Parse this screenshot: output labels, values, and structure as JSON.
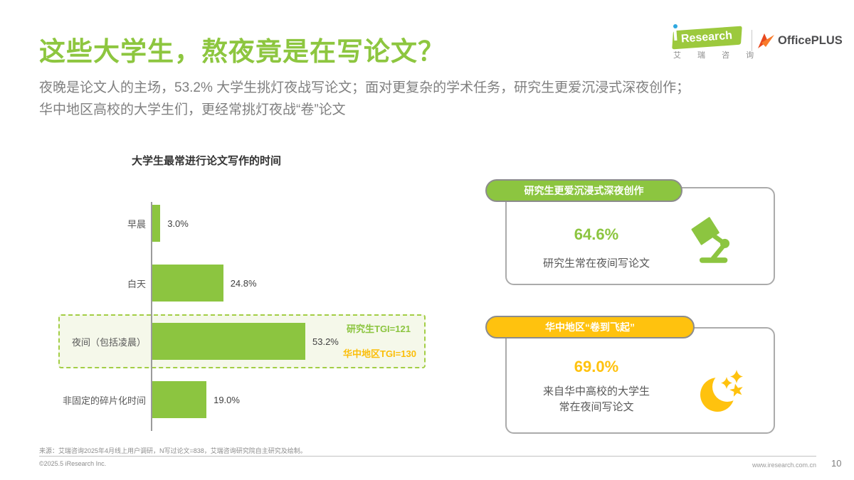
{
  "header": {
    "title": "这些大学生，熬夜竟是在写论文？",
    "subtitle_line1": "夜晚是论文人的主场，53.2% 大学生挑灯夜战写论文；面对更复杂的学术任务，研究生更爱沉浸式深夜创作；",
    "subtitle_line2": "华中地区高校的大学生们，更经常挑灯夜战“卷”论文",
    "logo": {
      "iresearch_en": "Research",
      "iresearch_cn": "艾 瑞 咨 询",
      "officeplus": "OfficePLUS"
    }
  },
  "colors": {
    "brand_green": "#8CC540",
    "brand_yellow": "#FFC20E",
    "title_green": "#8DC63F",
    "text_gray": "#7F7F7F",
    "dark_text": "#404040"
  },
  "chart_data": {
    "type": "bar",
    "orientation": "horizontal",
    "title": "大学生最常进行论文写作的时间",
    "categories": [
      "早晨",
      "白天",
      "夜间（包括凌晨）",
      "非固定的碎片化时间"
    ],
    "values": [
      3.0,
      24.8,
      53.2,
      19.0
    ],
    "value_labels": [
      "3.0%",
      "24.8%",
      "53.2%",
      "19.0%"
    ],
    "unit": "%",
    "xlim": [
      0,
      60
    ],
    "grid": false,
    "bar_color": "#8CC540",
    "highlight": {
      "category_index": 2,
      "style": "dashed-green-box"
    },
    "annotations": [
      {
        "text": "研究生TGI=121",
        "color": "#8CC540"
      },
      {
        "text": "华中地区TGI=130",
        "color": "#FBBE0A"
      }
    ]
  },
  "cards": [
    {
      "badge": "研究生更爱沉浸式深夜创作",
      "value": "64.6%",
      "desc_line1": "研究生常在夜间写论文",
      "desc_line2": "",
      "accent": "#8CC540",
      "icon": "desk-lamp-icon"
    },
    {
      "badge": "华中地区“卷到飞起”",
      "value": "69.0%",
      "desc_line1": "来自华中高校的大学生",
      "desc_line2": "常在夜间写论文",
      "accent": "#FFC20E",
      "icon": "moon-stars-icon"
    }
  ],
  "footer": {
    "source": "来源：艾瑞咨询2025年4月线上用户调研，N写过论文=838，艾瑞咨询研究院自主研究及绘制。",
    "copyright": "©2025.5 iResearch Inc.",
    "website": "www.iresearch.com.cn",
    "page": "10"
  }
}
